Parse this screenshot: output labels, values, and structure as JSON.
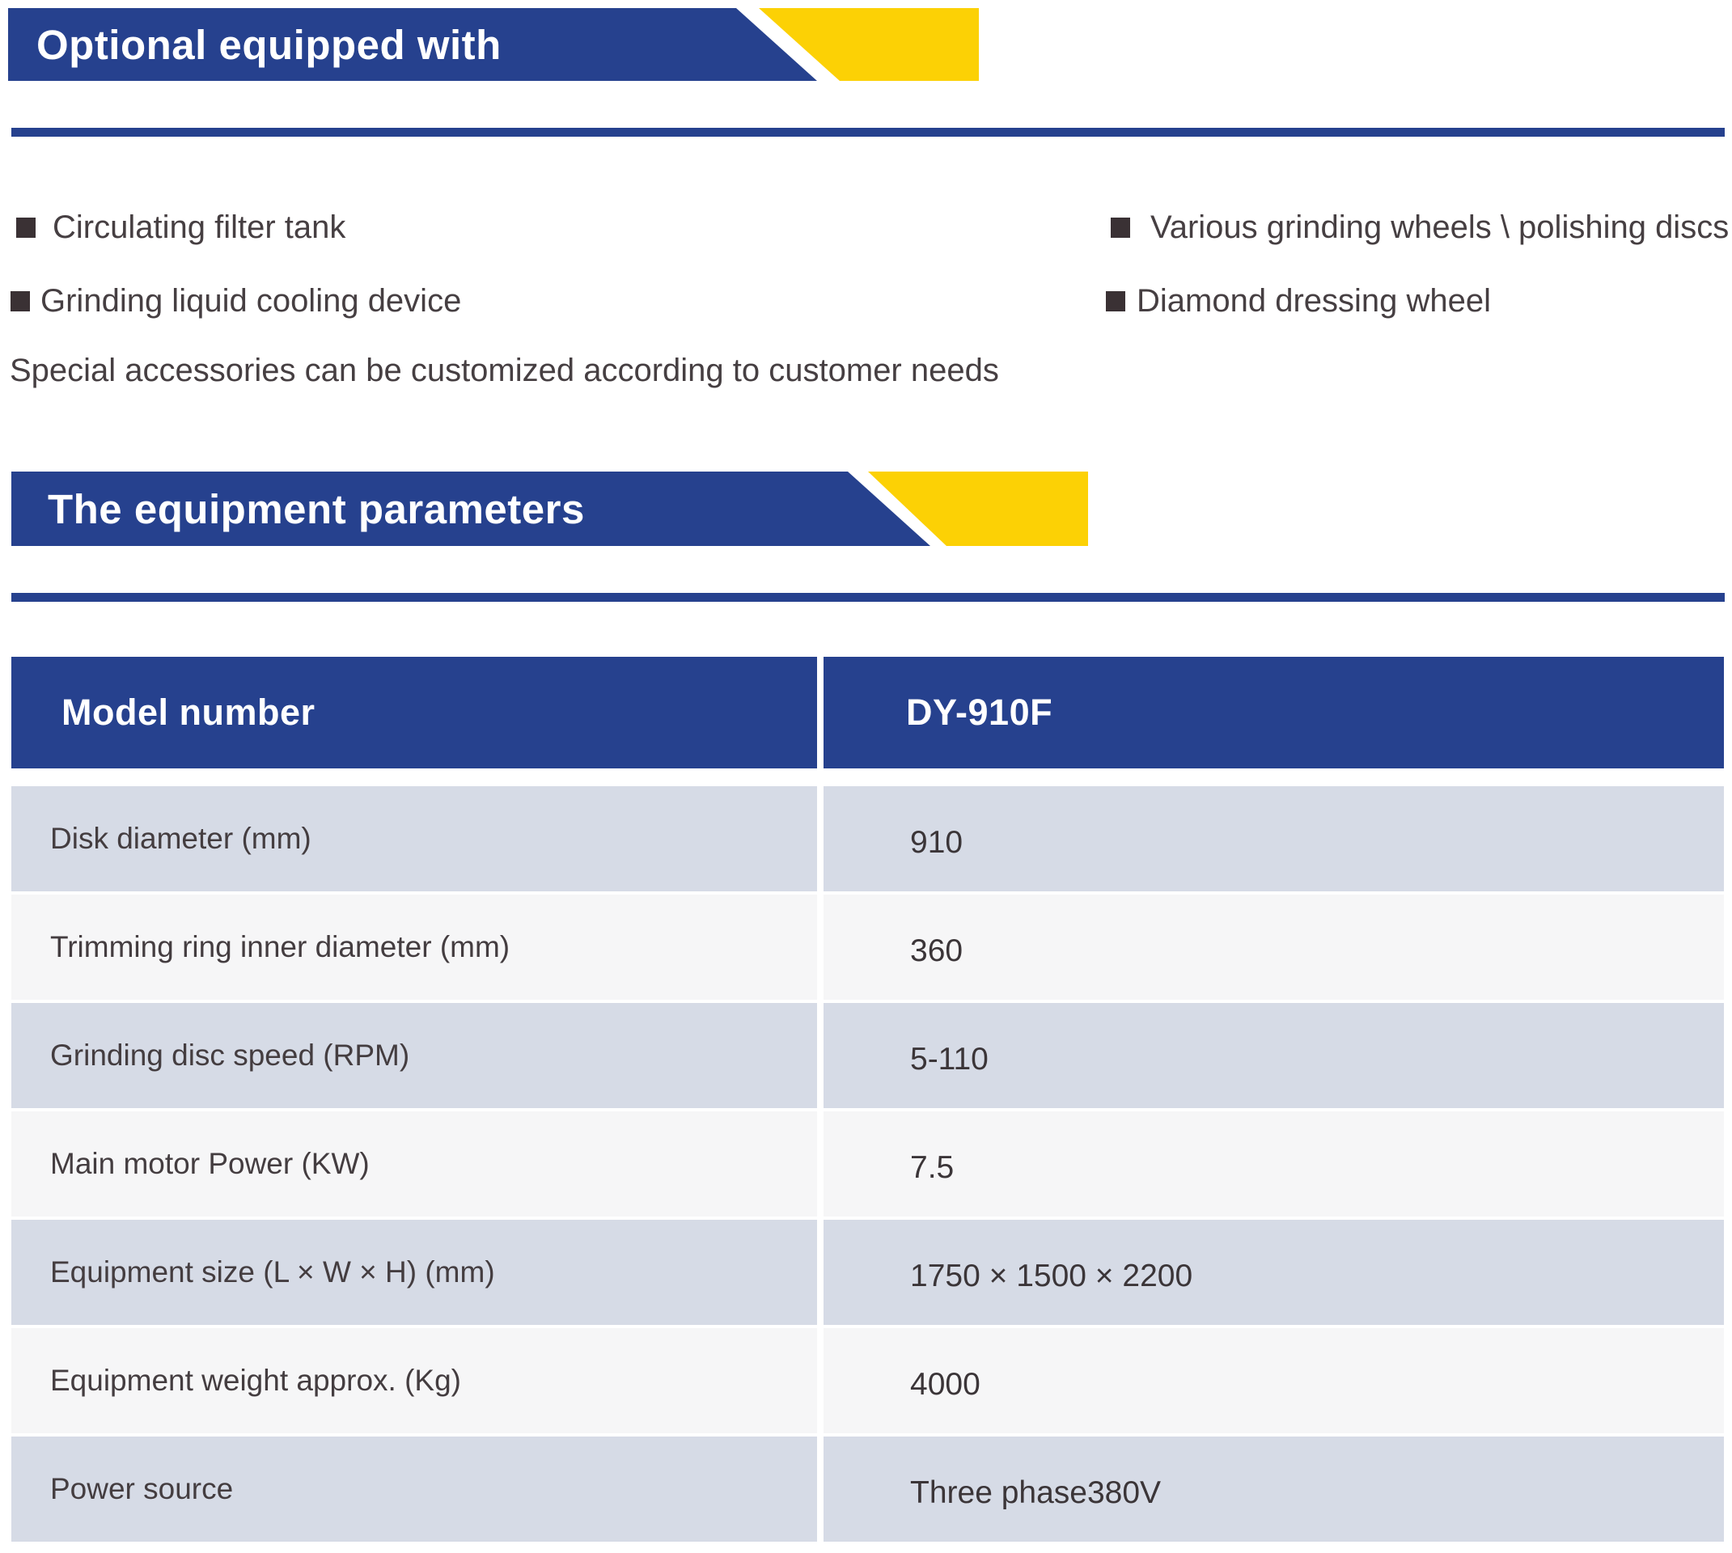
{
  "colors": {
    "banner_blue": "#26418e",
    "banner_yellow": "#fcd105",
    "row_shade_dark": "#d6dbe6",
    "row_shade_light": "#f6f6f7",
    "bullet_color": "#3a3134",
    "text_color": "#463f42"
  },
  "optional_section": {
    "title": "Optional equipped with",
    "items_left": [
      "Circulating filter tank",
      "Grinding liquid cooling device"
    ],
    "items_right": [
      "Various grinding wheels \\ polishing discs",
      "Diamond dressing wheel"
    ],
    "note": "Special accessories can be customized according to customer needs"
  },
  "parameters_section": {
    "title": "The equipment parameters",
    "table": {
      "header": {
        "label": "Model number",
        "value": "DY-910F"
      },
      "rows": [
        {
          "label": "Disk diameter (mm)",
          "value": "910"
        },
        {
          "label": "Trimming ring inner diameter (mm)",
          "value": "360"
        },
        {
          "label": "Grinding disc speed (RPM)",
          "value": "5-110"
        },
        {
          "label": "Main motor Power (KW)",
          "value": "7.5"
        },
        {
          "label": "Equipment size (L × W × H) (mm)",
          "value": "1750 × 1500 × 2200"
        },
        {
          "label": "Equipment weight approx. (Kg)",
          "value": "4000"
        },
        {
          "label": "Power source",
          "value": "Three phase380V"
        }
      ]
    }
  }
}
